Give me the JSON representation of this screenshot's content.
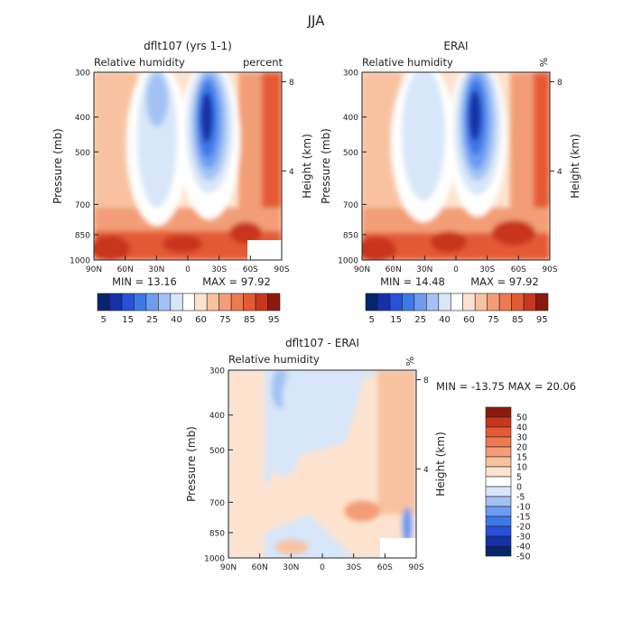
{
  "figure_title": "JJA",
  "colors": {
    "abs_levels": [
      "#08246b",
      "#1630a8",
      "#2850d8",
      "#3c78e8",
      "#6d9cf0",
      "#a3c2f3",
      "#d7e6f8",
      "#ffffff",
      "#fde3cf",
      "#f8c2a0",
      "#f39e76",
      "#ec7a52",
      "#e45a34",
      "#c8361d",
      "#8a1a0e"
    ],
    "diff_levels": [
      "#08246b",
      "#1630a8",
      "#2850d8",
      "#3c78e8",
      "#6d9cf0",
      "#a3c2f3",
      "#d7e6f8",
      "#ffffff",
      "#fde3cf",
      "#f8c2a0",
      "#f39e76",
      "#ec7a52",
      "#e45a34",
      "#c8361d",
      "#8a1a0e"
    ]
  },
  "chart_data": [
    {
      "type": "heatmap",
      "title": "dflt107 (yrs 1-1)",
      "left_label": "Relative humidity",
      "right_label": "percent",
      "xlabel": "",
      "ylabel": "Pressure (mb)",
      "ylabel_right": "Height (km)",
      "x_ticks": [
        "90N",
        "60N",
        "30N",
        "0",
        "30S",
        "60S",
        "90S"
      ],
      "y_ticks": [
        "300",
        "400",
        "500",
        "700",
        "850",
        "1000"
      ],
      "y_right_ticks": [
        "8",
        "4"
      ],
      "min_text": "MIN =  13.16",
      "max_text": "MAX =  97.92",
      "min": 13.16,
      "max": 97.92,
      "colorbar_labels": [
        "5",
        "15",
        "25",
        "40",
        "60",
        "75",
        "85",
        "95"
      ]
    },
    {
      "type": "heatmap",
      "title": "ERAI",
      "left_label": "Relative humidity",
      "right_label": "%",
      "xlabel": "",
      "ylabel": "Pressure (mb)",
      "ylabel_right": "Height (km)",
      "x_ticks": [
        "90N",
        "60N",
        "30N",
        "0",
        "30S",
        "60S",
        "90S"
      ],
      "y_ticks": [
        "300",
        "400",
        "500",
        "700",
        "850",
        "1000"
      ],
      "y_right_ticks": [
        "8",
        "4"
      ],
      "min_text": "MIN =  14.48",
      "max_text": "MAX =  97.92",
      "min": 14.48,
      "max": 97.92,
      "colorbar_labels": [
        "5",
        "15",
        "25",
        "40",
        "60",
        "75",
        "85",
        "95"
      ]
    },
    {
      "type": "heatmap",
      "title": "dflt107 - ERAI",
      "left_label": "Relative humidity",
      "right_label": "%",
      "xlabel": "",
      "ylabel": "Pressure (mb)",
      "ylabel_right": "Height (km)",
      "x_ticks": [
        "90N",
        "60N",
        "30N",
        "0",
        "30S",
        "60S",
        "90S"
      ],
      "y_ticks": [
        "300",
        "400",
        "500",
        "700",
        "850",
        "1000"
      ],
      "y_right_ticks": [
        "8",
        "4"
      ],
      "minmax_text": "MIN = -13.75   MAX =  20.06",
      "min": -13.75,
      "max": 20.06,
      "colorbar_labels": [
        "50",
        "40",
        "30",
        "20",
        "15",
        "10",
        "5",
        "0",
        "-5",
        "-10",
        "-15",
        "-20",
        "-30",
        "-40",
        "-50"
      ]
    }
  ]
}
